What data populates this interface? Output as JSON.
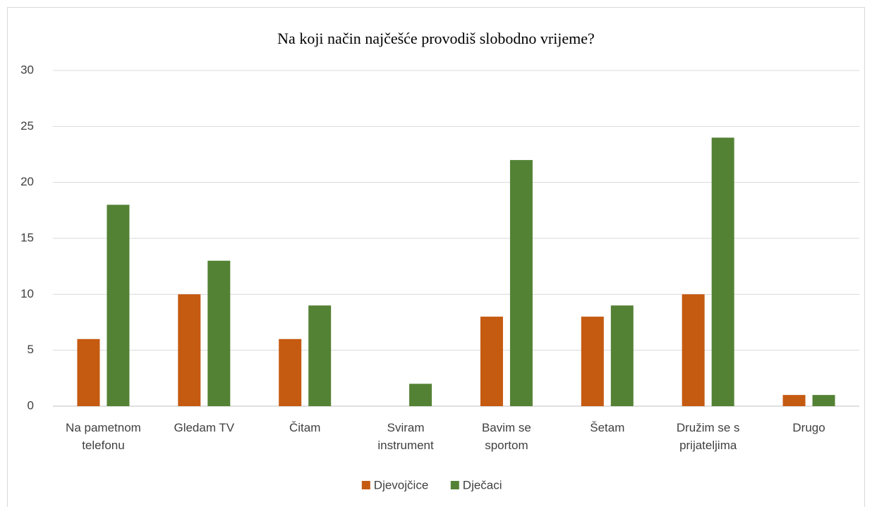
{
  "chart_data": {
    "type": "bar",
    "title": "Na koji način najčešće provodiš slobodno vrijeme?",
    "categories": [
      "Na pametnom telefonu",
      "Gledam TV",
      "Čitam",
      "Sviram instrument",
      "Bavim se sportom",
      "Šetam",
      "Družim se s prijateljima",
      "Drugo"
    ],
    "series": [
      {
        "name": "Djevojčice",
        "color": "#c55a11",
        "values": [
          6,
          10,
          6,
          0,
          8,
          8,
          10,
          1
        ]
      },
      {
        "name": "Dječaci",
        "color": "#548235",
        "values": [
          18,
          13,
          9,
          2,
          22,
          9,
          24,
          1
        ]
      }
    ],
    "ylim": [
      0,
      30
    ],
    "yticks": [
      0,
      5,
      10,
      15,
      20,
      25,
      30
    ],
    "grid": true,
    "legend": "bottom"
  }
}
